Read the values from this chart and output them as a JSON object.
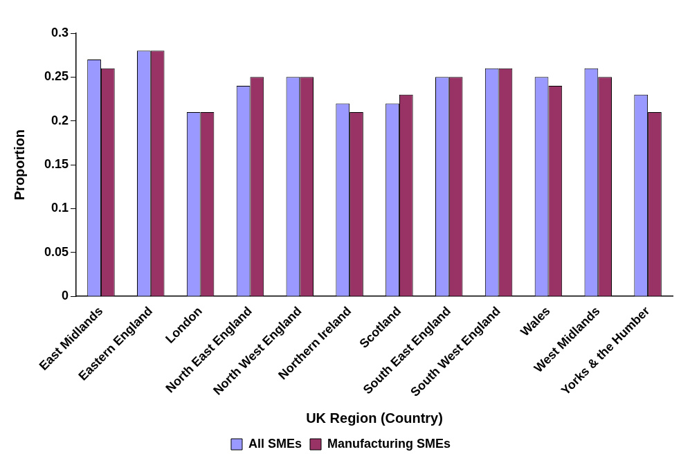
{
  "chart_data": {
    "type": "bar",
    "xlabel": "UK Region (Country)",
    "ylabel": "Proportion",
    "categories": [
      "East Midlands",
      "Eastern England",
      "London",
      "North East England",
      "North West England",
      "Northern Ireland",
      "Scotland",
      "South East England",
      "South West England",
      "Wales",
      "West Midlands",
      "Yorks & the Humber"
    ],
    "series": [
      {
        "name": "All SMEs",
        "color": "#9999ff",
        "values": [
          0.27,
          0.28,
          0.21,
          0.24,
          0.25,
          0.22,
          0.22,
          0.25,
          0.26,
          0.25,
          0.26,
          0.23
        ]
      },
      {
        "name": "Manufacturing SMEs",
        "color": "#993366",
        "values": [
          0.26,
          0.28,
          0.21,
          0.25,
          0.25,
          0.21,
          0.23,
          0.25,
          0.26,
          0.24,
          0.25,
          0.21
        ]
      }
    ],
    "ylim": [
      0,
      0.3
    ],
    "yticks": [
      0,
      0.05,
      0.1,
      0.15,
      0.2,
      0.25,
      0.3
    ],
    "grid": false,
    "legend": "bottom"
  }
}
